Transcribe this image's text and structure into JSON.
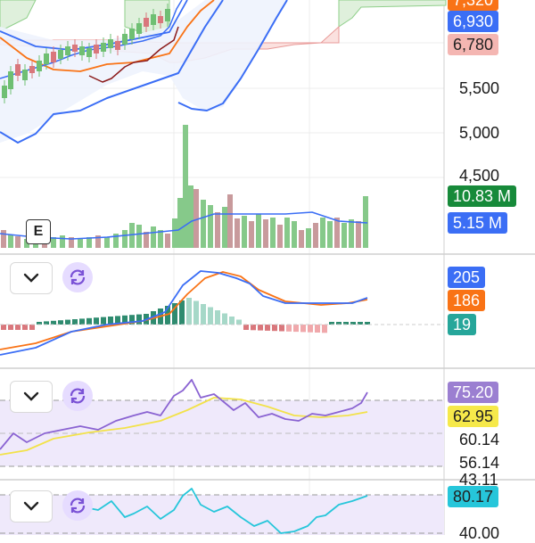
{
  "price_badges": [
    {
      "label": "7,320",
      "bg": "#f97316",
      "fg": "#ffffff"
    },
    {
      "label": "6,930",
      "bg": "#3b6ef5",
      "fg": "#ffffff"
    },
    {
      "label": "6,780",
      "bg": "#f4b6b2",
      "fg": "#222222"
    }
  ],
  "price_axis": [
    "5,500",
    "5,000",
    "4,500"
  ],
  "volume_badges": [
    {
      "label": "10.83 M",
      "bg": "#178a3a",
      "fg": "#ffffff"
    },
    {
      "label": "5.15 M",
      "bg": "#3b6ef5",
      "fg": "#ffffff"
    }
  ],
  "event_marker": "E",
  "macd_badges": [
    {
      "label": "205",
      "bg": "#3b6ef5",
      "fg": "#ffffff"
    },
    {
      "label": "186",
      "bg": "#f97316",
      "fg": "#ffffff"
    },
    {
      "label": "19",
      "bg": "#26a69a",
      "fg": "#ffffff"
    }
  ],
  "rsi_badges": [
    {
      "label": "75.20",
      "bg": "#9b7fd1",
      "fg": "#ffffff"
    },
    {
      "label": "62.95",
      "bg": "#f6e94a",
      "fg": "#222222"
    }
  ],
  "rsi_axis": [
    "60.14",
    "56.14"
  ],
  "rsi_axis_partial": "43.11",
  "stoch_badges": [
    {
      "label": "80.17",
      "bg": "#26c6da",
      "fg": "#222222"
    }
  ],
  "stoch_axis_partial": "40.00",
  "icons": {
    "collapse": "chevron-down-icon",
    "refresh": "refresh-icon"
  },
  "colors": {
    "up": "#6fbf73",
    "down": "#d9777c",
    "blue": "#3b6ef5",
    "orange": "#f97316",
    "purple": "#8a63d2",
    "yellow": "#f2e24a",
    "cyan": "#26c6da"
  }
}
